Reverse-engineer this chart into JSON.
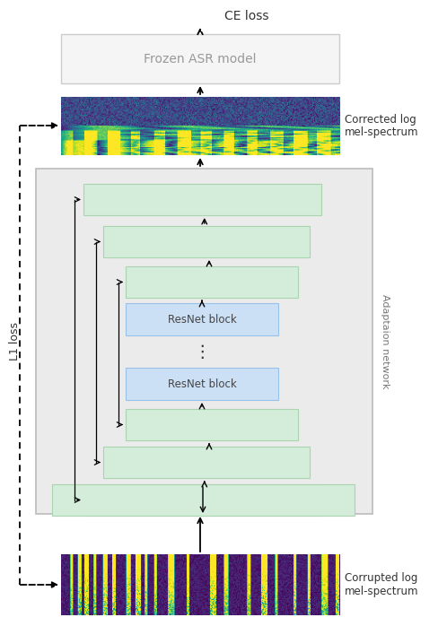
{
  "fig_width": 4.98,
  "fig_height": 6.98,
  "bg_color": "#ffffff",
  "ce_loss_text": "CE loss",
  "frozen_asr_text": "Frozen ASR model",
  "corrected_label": "Corrected log\nmel-spectrum",
  "corrupted_label": "Corrupted log\nmel-spectrum",
  "l1_loss_text": "L1 loss",
  "adaptation_text": "Adaptaion network",
  "green_color": "#d4edda",
  "green_edge": "#a8d5b0",
  "blue_color": "#cce0f5",
  "blue_edge": "#99c2e8",
  "frozen_box_color": "#f5f5f5",
  "frozen_box_edge": "#cccccc",
  "adaptation_box_color": "#ebebeb",
  "adaptation_box_edge": "#bbbbbb"
}
